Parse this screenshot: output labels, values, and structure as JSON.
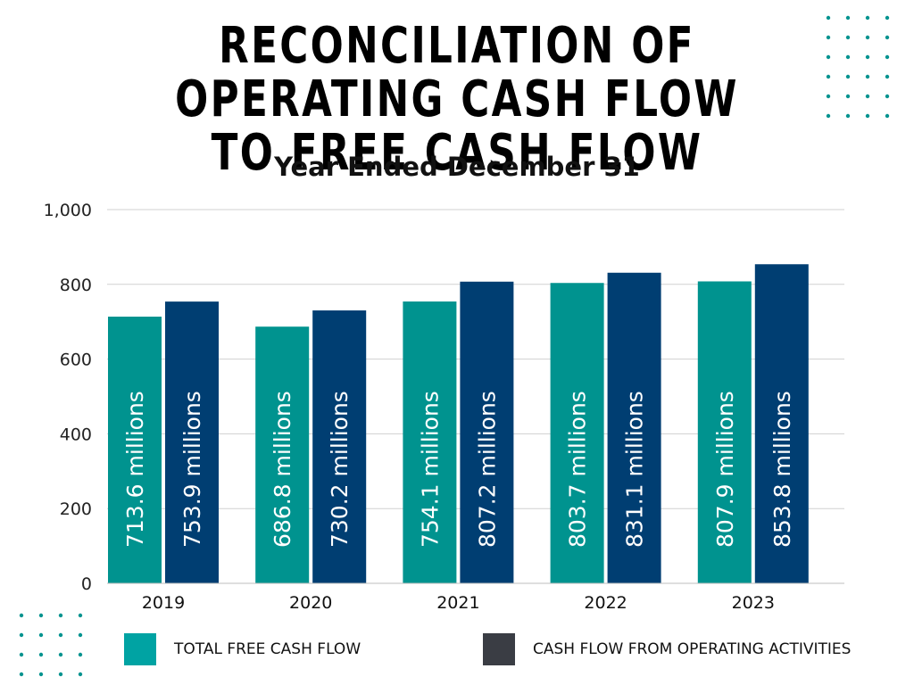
{
  "title": "RECONCILIATION OF OPERATING CASH FLOW TO FREE CASH FLOW",
  "subtitle": "Year Ended December 31",
  "colors": {
    "free_cash_flow": "#00938F",
    "operating_cash_flow": "#003E72",
    "legend_operating": "#3A3D44",
    "legend_free": "#00A3A3",
    "dots": "#00938F",
    "grid": "#D0D0D0"
  },
  "legend": {
    "items": [
      {
        "label": "TOTAL FREE CASH FLOW",
        "color": "#00A3A3"
      },
      {
        "label": "CASH FLOW FROM OPERATING ACTIVITIES",
        "color": "#3A3D44"
      }
    ]
  },
  "chart_data": {
    "type": "bar",
    "categories": [
      "2019",
      "2020",
      "2021",
      "2022",
      "2023"
    ],
    "series": [
      {
        "name": "TOTAL FREE CASH FLOW",
        "values": [
          713.6,
          686.8,
          754.1,
          803.7,
          807.9
        ],
        "labels": [
          "713.6  millions",
          "686.8 millions",
          "754.1 millions",
          "803.7 millions",
          "807.9 millions"
        ]
      },
      {
        "name": "CASH FLOW FROM OPERATING ACTIVITIES",
        "values": [
          753.9,
          730.2,
          807.2,
          831.1,
          853.8
        ],
        "labels": [
          "753.9 millions",
          "730.2 millions",
          "807.2 millions",
          "831.1 millions",
          "853.8 millions"
        ]
      }
    ],
    "ylim": [
      0,
      1000
    ],
    "yticks": [
      0,
      200,
      400,
      600,
      800,
      1000
    ],
    "ytick_labels": [
      "0",
      "200",
      "400",
      "600",
      "800",
      "1,000"
    ],
    "grid": true,
    "legend_position": "bottom"
  }
}
